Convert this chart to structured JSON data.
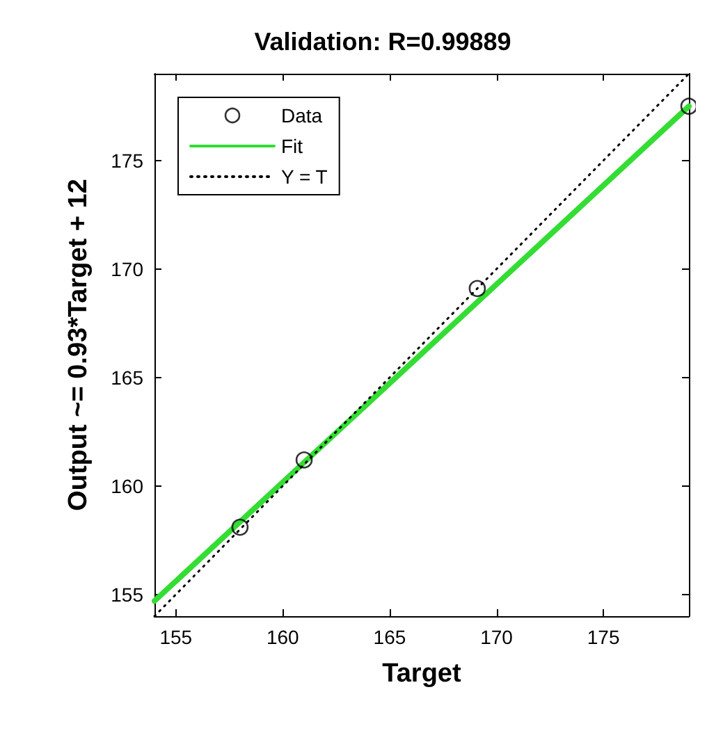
{
  "chart_data": {
    "type": "scatter",
    "title": "Validation: R=0.99889",
    "xlabel": "Target",
    "ylabel": "Output ~= 0.93*Target + 12",
    "xlim": [
      154,
      179
    ],
    "ylim": [
      154,
      179
    ],
    "xticks": [
      155,
      160,
      165,
      170,
      175
    ],
    "yticks": [
      155,
      160,
      165,
      170,
      175
    ],
    "legend": "top left",
    "grid": false,
    "series": [
      {
        "name": "Data",
        "marker": "circle",
        "color": "#000000",
        "x": [
          158,
          161,
          169.1,
          179
        ],
        "values": [
          158.1,
          161.2,
          169.1,
          177.5
        ]
      },
      {
        "name": "Fit",
        "type": "line",
        "marker": "none",
        "line_style": "solid",
        "color": "#33dd33",
        "x": [
          154,
          179
        ],
        "values": [
          154.7,
          177.5
        ]
      },
      {
        "name": "Y = T",
        "type": "line",
        "marker": "none",
        "line_style": "dotted",
        "color": "#000000",
        "x": [
          154,
          179
        ],
        "values": [
          154,
          179
        ]
      }
    ]
  }
}
